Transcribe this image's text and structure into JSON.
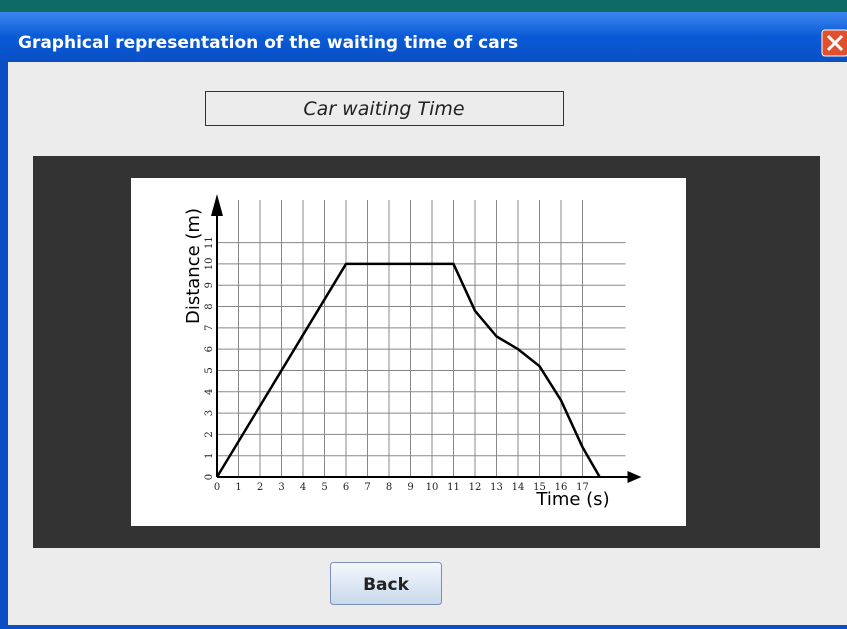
{
  "window": {
    "title": "Graphical representation of the waiting time of cars"
  },
  "heading": "Car waiting Time",
  "button": "Back",
  "chart_data": {
    "type": "line",
    "xlabel": "Time (s)",
    "ylabel": "Distance (m)",
    "x": [
      0,
      6,
      11,
      12,
      13,
      14,
      15,
      16,
      17,
      17.8
    ],
    "values": [
      0,
      10,
      10,
      7.8,
      6.6,
      6,
      5.2,
      3.6,
      1.4,
      0
    ],
    "color": "#000000",
    "xlim": [
      0,
      19
    ],
    "ylim": [
      0,
      13
    ],
    "xticks": [
      0,
      1,
      2,
      3,
      4,
      5,
      6,
      7,
      8,
      9,
      10,
      11,
      12,
      13,
      14,
      15,
      16,
      17
    ],
    "yticks": [
      0,
      1,
      2,
      3,
      4,
      5,
      6,
      7,
      8,
      9,
      10,
      11
    ],
    "grid": true
  }
}
